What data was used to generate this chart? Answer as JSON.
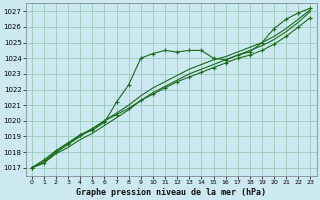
{
  "title": "Graphe pression niveau de la mer (hPa)",
  "background_color": "#cce8f0",
  "grid_color": "#99ccbb",
  "line_color": "#1a6b1a",
  "xlim": [
    -0.5,
    23.5
  ],
  "ylim": [
    1016.5,
    1027.5
  ],
  "yticks": [
    1017,
    1018,
    1019,
    1020,
    1021,
    1022,
    1023,
    1024,
    1025,
    1026,
    1027
  ],
  "xticks": [
    0,
    1,
    2,
    3,
    4,
    5,
    6,
    7,
    8,
    9,
    10,
    11,
    12,
    13,
    14,
    15,
    16,
    17,
    18,
    19,
    20,
    21,
    22,
    23
  ],
  "line_top_x": [
    0,
    1,
    2,
    3,
    4,
    5,
    6,
    7,
    8,
    9,
    10,
    11,
    12,
    13,
    14,
    15,
    16,
    17,
    18,
    19,
    20,
    21,
    22,
    23
  ],
  "line_top_y": [
    1017.0,
    1017.3,
    1018.0,
    1018.5,
    1019.1,
    1019.4,
    1019.9,
    1021.2,
    1022.3,
    1024.0,
    1024.3,
    1024.5,
    1024.4,
    1024.5,
    1024.5,
    1024.0,
    1023.9,
    1024.2,
    1024.4,
    1025.0,
    1025.9,
    1026.5,
    1026.9,
    1027.2
  ],
  "line_mid1_x": [
    0,
    1,
    2,
    3,
    4,
    5,
    6,
    7,
    8,
    9,
    10,
    11,
    12,
    13,
    14,
    15,
    16,
    17,
    18,
    19,
    20,
    21,
    22,
    23
  ],
  "line_mid1_y": [
    1017.0,
    1017.3,
    1017.9,
    1018.3,
    1018.8,
    1019.2,
    1019.7,
    1020.2,
    1020.7,
    1021.3,
    1021.8,
    1022.2,
    1022.6,
    1023.0,
    1023.3,
    1023.6,
    1023.9,
    1024.2,
    1024.5,
    1024.8,
    1025.2,
    1025.7,
    1026.3,
    1027.0
  ],
  "line_mid2_x": [
    0,
    1,
    2,
    3,
    4,
    5,
    6,
    7,
    8,
    9,
    10,
    11,
    12,
    13,
    14,
    15,
    16,
    17,
    18,
    19,
    20,
    21,
    22,
    23
  ],
  "line_mid2_y": [
    1017.0,
    1017.4,
    1018.0,
    1018.5,
    1019.0,
    1019.5,
    1020.0,
    1020.5,
    1021.0,
    1021.6,
    1022.1,
    1022.5,
    1022.9,
    1023.3,
    1023.6,
    1023.9,
    1024.1,
    1024.4,
    1024.7,
    1025.0,
    1025.4,
    1025.9,
    1026.5,
    1027.1
  ],
  "line_bot_x": [
    0,
    1,
    2,
    3,
    4,
    5,
    6,
    7,
    8,
    9,
    10,
    11,
    12,
    13,
    14,
    15,
    16,
    17,
    18,
    19,
    20,
    21,
    22,
    23
  ],
  "line_bot_y": [
    1017.0,
    1017.5,
    1018.1,
    1018.6,
    1019.1,
    1019.5,
    1020.0,
    1020.4,
    1020.8,
    1021.3,
    1021.7,
    1022.1,
    1022.5,
    1022.8,
    1023.1,
    1023.4,
    1023.7,
    1024.0,
    1024.2,
    1024.5,
    1024.9,
    1025.4,
    1026.0,
    1026.6
  ],
  "ylabel_fontsize": 5,
  "xlabel_fontsize": 6,
  "tick_fontsize": 4.5
}
